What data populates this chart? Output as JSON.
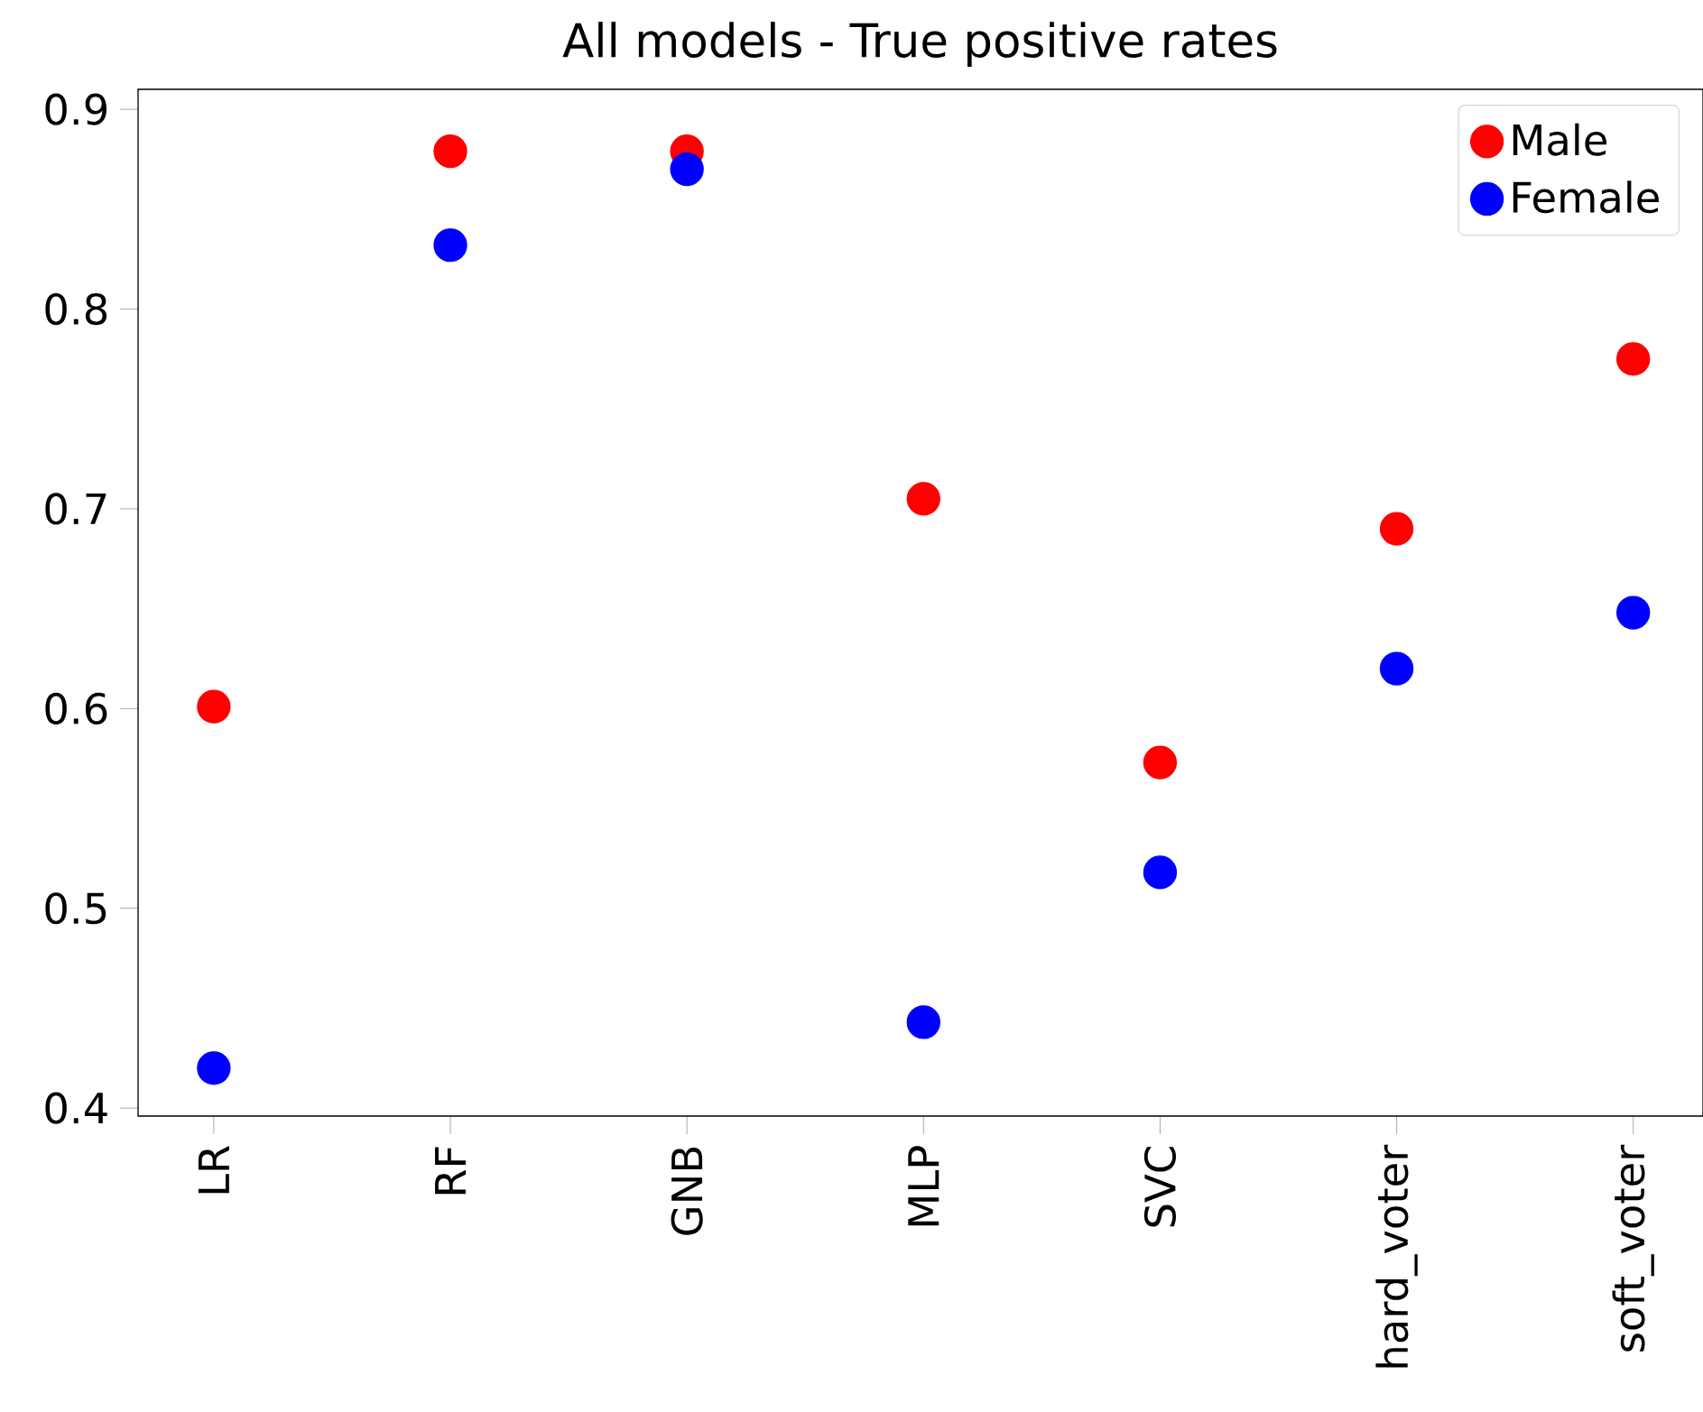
{
  "chart_data": {
    "type": "scatter",
    "title": "All models - True positive rates",
    "categories": [
      "LR",
      "RF",
      "GNB",
      "MLP",
      "SVC",
      "hard_voter",
      "soft_voter"
    ],
    "series": [
      {
        "name": "Male",
        "color": "#ff0000",
        "values": [
          0.601,
          0.879,
          0.879,
          0.705,
          0.573,
          0.69,
          0.775
        ]
      },
      {
        "name": "Female",
        "color": "#0000ff",
        "values": [
          0.42,
          0.832,
          0.87,
          0.443,
          0.518,
          0.62,
          0.648
        ]
      }
    ],
    "ylim": [
      0.396,
      0.91
    ],
    "yticks": [
      0.4,
      0.5,
      0.6,
      0.7,
      0.8,
      0.9
    ],
    "marker": "circle",
    "legend": "top right"
  }
}
